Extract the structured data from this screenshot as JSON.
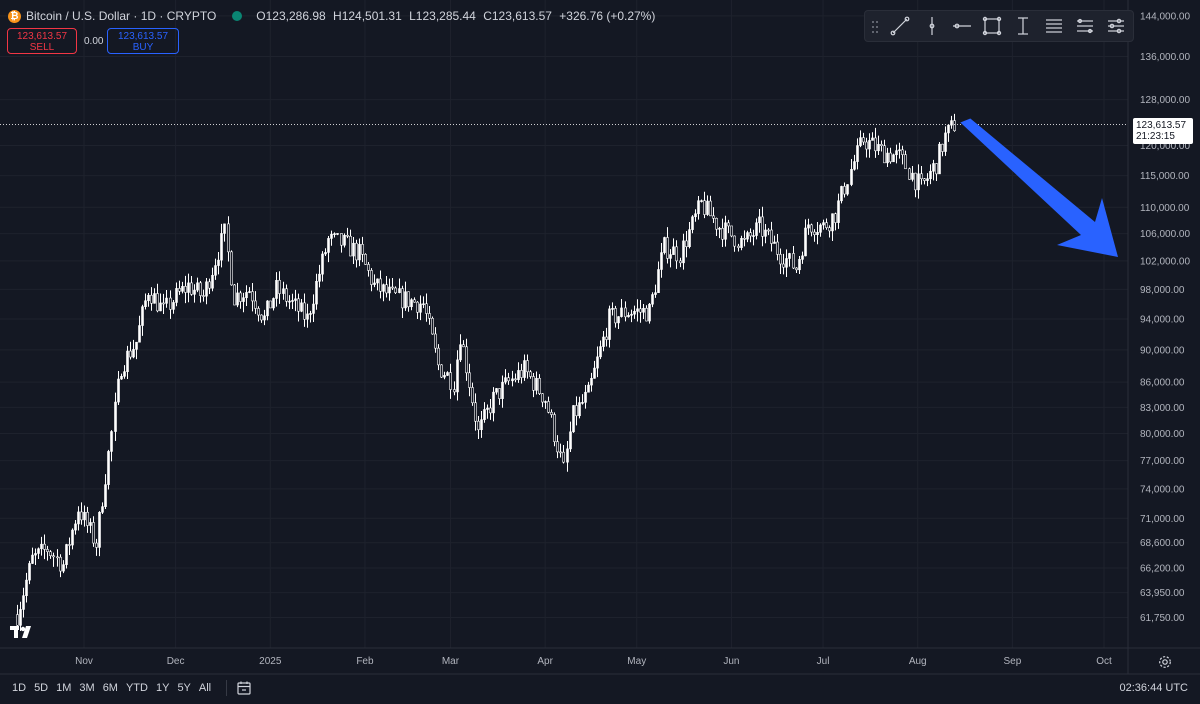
{
  "header": {
    "symbol": "Bitcoin / U.S. Dollar · 1D · CRYPTO",
    "open_label": "O",
    "open": "123,286.98",
    "high_label": "H",
    "high": "124,501.31",
    "low_label": "L",
    "low": "123,285.44",
    "close_label": "C",
    "close": "123,613.57",
    "change": "+326.76 (+0.27%)"
  },
  "trade": {
    "sell_price": "123,613.57",
    "sell_label": "SELL",
    "spread": "0.00",
    "buy_price": "123,613.57",
    "buy_label": "BUY"
  },
  "last_price": {
    "price": "123,613.57",
    "countdown": "21:23:15"
  },
  "drawing_tools": [
    "trend-line-icon",
    "vertical-line-icon",
    "horizontal-line-icon",
    "rectangle-icon",
    "text-cursor-icon",
    "fib-retracement-icon",
    "parallel-channel-icon",
    "settings-lines-icon"
  ],
  "timeframes": [
    "1D",
    "5D",
    "1M",
    "3M",
    "6M",
    "YTD",
    "1Y",
    "5Y",
    "All"
  ],
  "clock": "02:36:44 UTC",
  "colors": {
    "background": "#141823",
    "candle": "#ffffff",
    "arrow": "#2962ff",
    "sell": "#f23645",
    "buy": "#2962ff"
  },
  "chart_data": {
    "type": "line",
    "scale": "log",
    "ylim": [
      60500,
      145000
    ],
    "y_ticks": [
      144000,
      136000,
      128000,
      120000,
      115000,
      110000,
      106000,
      102000,
      98000,
      94000,
      90000,
      86000,
      83000,
      80000,
      77000,
      74000,
      71000,
      68600,
      66200,
      63950,
      61750
    ],
    "y_tick_labels": [
      "144,000.00",
      "136,000.00",
      "128,000.00",
      "120,000.00",
      "115,000.00",
      "110,000.00",
      "106,000.00",
      "102,000.00",
      "98,000.00",
      "94,000.00",
      "90,000.00",
      "86,000.00",
      "83,000.00",
      "80,000.00",
      "77,000.00",
      "74,000.00",
      "71,000.00",
      "68,600.00",
      "66,200.00",
      "63,950.00",
      "61,750.00"
    ],
    "x_labels": [
      "Nov",
      "Dec",
      "2025",
      "Feb",
      "Mar",
      "Apr",
      "May",
      "Jun",
      "Jul",
      "Aug",
      "Sep",
      "Oct"
    ],
    "x_start": "2024-10-10",
    "x_end": "2025-10-10",
    "x_label_dates": [
      "2024-11-01",
      "2024-12-01",
      "2025-01-01",
      "2025-02-01",
      "2025-03-01",
      "2025-04-01",
      "2025-05-01",
      "2025-06-01",
      "2025-07-01",
      "2025-08-01",
      "2025-09-01",
      "2025-10-01"
    ],
    "series": [
      {
        "x": [
          "2024-10-10",
          "2024-10-15",
          "2024-10-20",
          "2024-10-25",
          "2024-10-30",
          "2024-11-05",
          "2024-11-10",
          "2024-11-13",
          "2024-11-18",
          "2024-11-22",
          "2024-11-27",
          "2024-12-01",
          "2024-12-05",
          "2024-12-10",
          "2024-12-17",
          "2024-12-20",
          "2024-12-25",
          "2024-12-30",
          "2025-01-03",
          "2025-01-08",
          "2025-01-13",
          "2025-01-20",
          "2025-01-25",
          "2025-01-30",
          "2025-02-04",
          "2025-02-10",
          "2025-02-20",
          "2025-02-25",
          "2025-03-02",
          "2025-03-04",
          "2025-03-10",
          "2025-03-15",
          "2025-03-20",
          "2025-03-25",
          "2025-04-01",
          "2025-04-07",
          "2025-04-10",
          "2025-04-15",
          "2025-04-22",
          "2025-04-28",
          "2025-05-05",
          "2025-05-10",
          "2025-05-15",
          "2025-05-22",
          "2025-05-28",
          "2025-06-05",
          "2025-06-10",
          "2025-06-17",
          "2025-06-22",
          "2025-06-26",
          "2025-07-01",
          "2025-07-05",
          "2025-07-10",
          "2025-07-14",
          "2025-07-20",
          "2025-07-26",
          "2025-08-02",
          "2025-08-07",
          "2025-08-10",
          "2025-08-13"
        ],
        "values": [
          62000,
          67000,
          68000,
          66500,
          72000,
          68500,
          80000,
          88000,
          91000,
          98000,
          95000,
          97000,
          98500,
          97000,
          106000,
          97000,
          98000,
          94000,
          98000,
          96000,
          94000,
          105000,
          104500,
          103000,
          98500,
          97000,
          96000,
          88000,
          86000,
          92000,
          80000,
          84000,
          86000,
          87500,
          84000,
          76000,
          82000,
          84500,
          94000,
          95000,
          95000,
          104000,
          103000,
          110500,
          107000,
          104500,
          107000,
          103000,
          101000,
          107500,
          107000,
          109000,
          116000,
          121000,
          119000,
          118000,
          113000,
          117000,
          121500,
          123600
        ]
      }
    ],
    "annotation": "blue arrow pointing down-right"
  }
}
